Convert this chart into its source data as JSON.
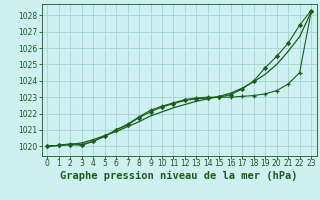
{
  "title": "Graphe pression niveau de la mer (hPa)",
  "bg_color": "#cff0f0",
  "grid_color": "#a8d8d8",
  "line_color": "#1a5c1a",
  "marker_color": "#1a5c1a",
  "xlim": [
    -0.5,
    23.5
  ],
  "ylim": [
    1019.4,
    1028.7
  ],
  "yticks": [
    1020,
    1021,
    1022,
    1023,
    1024,
    1025,
    1026,
    1027,
    1028
  ],
  "xticks": [
    0,
    1,
    2,
    3,
    4,
    5,
    6,
    7,
    8,
    9,
    10,
    11,
    12,
    13,
    14,
    15,
    16,
    17,
    18,
    19,
    20,
    21,
    22,
    23
  ],
  "series_smooth_x": [
    0,
    1,
    2,
    3,
    4,
    5,
    6,
    7,
    8,
    9,
    10,
    11,
    12,
    13,
    14,
    15,
    16,
    17,
    18,
    19,
    20,
    21,
    22,
    23
  ],
  "series_smooth_y": [
    1020.0,
    1020.05,
    1020.1,
    1020.2,
    1020.4,
    1020.65,
    1020.9,
    1021.2,
    1021.5,
    1021.85,
    1022.1,
    1022.35,
    1022.55,
    1022.75,
    1022.9,
    1023.05,
    1023.25,
    1023.55,
    1023.95,
    1024.4,
    1025.0,
    1025.8,
    1026.7,
    1028.2
  ],
  "series_plus_x": [
    0,
    1,
    2,
    3,
    4,
    5,
    6,
    7,
    8,
    9,
    10,
    11,
    12,
    13,
    14,
    15,
    16,
    17,
    18,
    19,
    20,
    21,
    22,
    23
  ],
  "series_plus_y": [
    1020.0,
    1020.05,
    1020.15,
    1020.1,
    1020.3,
    1020.6,
    1021.0,
    1021.35,
    1021.8,
    1022.2,
    1022.45,
    1022.65,
    1022.85,
    1022.95,
    1023.0,
    1023.0,
    1023.0,
    1023.05,
    1023.1,
    1023.2,
    1023.4,
    1023.8,
    1024.5,
    1028.2
  ],
  "series_diamond_x": [
    0,
    1,
    2,
    3,
    4,
    5,
    6,
    7,
    8,
    9,
    10,
    11,
    12,
    13,
    14,
    15,
    16,
    17,
    18,
    19,
    20,
    21,
    22,
    23
  ],
  "series_diamond_y": [
    1020.0,
    1020.05,
    1020.1,
    1020.05,
    1020.3,
    1020.6,
    1021.0,
    1021.3,
    1021.75,
    1022.1,
    1022.4,
    1022.6,
    1022.8,
    1022.9,
    1022.95,
    1023.0,
    1023.15,
    1023.5,
    1024.0,
    1024.8,
    1025.5,
    1026.3,
    1027.4,
    1028.3
  ],
  "title_fontsize": 7.5,
  "tick_fontsize": 5.5
}
